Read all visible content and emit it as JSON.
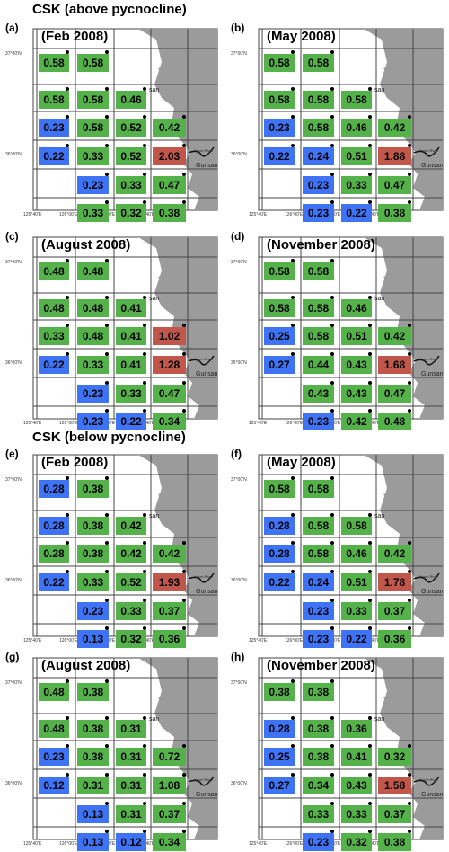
{
  "titles": {
    "above": "CSK (above pycnocline)",
    "below": "CSK (below pycnocline)"
  },
  "colors": {
    "green": "#55b24a",
    "blue": "#3f73f5",
    "red": "#c0574a",
    "land": "#9b9b9b",
    "grid": "#444444"
  },
  "labels": {
    "lat_north": "37°00'N",
    "lat_south": "36°00'N",
    "lon": [
      "125°40'E",
      "126°00'E",
      "126°20'E",
      "126°40'E"
    ],
    "river": "Keum River",
    "city": "Gunsan",
    "upper_place": "san"
  },
  "panels": [
    {
      "letter": "(a)",
      "title": "(Feb 2008)",
      "cells": [
        {
          "row": 0,
          "col": 0,
          "value": "0.58",
          "color": "green"
        },
        {
          "row": 0,
          "col": 1,
          "value": "0.58",
          "color": "green"
        },
        {
          "row": 1,
          "col": 0,
          "value": "0.58",
          "color": "green"
        },
        {
          "row": 1,
          "col": 1,
          "value": "0.58",
          "color": "green"
        },
        {
          "row": 1,
          "col": 2,
          "value": "0.46",
          "color": "green"
        },
        {
          "row": 2,
          "col": 0,
          "value": "0.23",
          "color": "blue"
        },
        {
          "row": 2,
          "col": 1,
          "value": "0.58",
          "color": "green"
        },
        {
          "row": 2,
          "col": 2,
          "value": "0.52",
          "color": "green"
        },
        {
          "row": 2,
          "col": 3,
          "value": "0.42",
          "color": "green"
        },
        {
          "row": 3,
          "col": 0,
          "value": "0.22",
          "color": "blue"
        },
        {
          "row": 3,
          "col": 1,
          "value": "0.33",
          "color": "green"
        },
        {
          "row": 3,
          "col": 2,
          "value": "0.52",
          "color": "green"
        },
        {
          "row": 3,
          "col": 3,
          "value": "2.03",
          "color": "red"
        },
        {
          "row": 4,
          "col": 1,
          "value": "0.23",
          "color": "blue"
        },
        {
          "row": 4,
          "col": 2,
          "value": "0.33",
          "color": "green"
        },
        {
          "row": 4,
          "col": 3,
          "value": "0.47",
          "color": "green"
        },
        {
          "row": 5,
          "col": 1,
          "value": "0.33",
          "color": "green"
        },
        {
          "row": 5,
          "col": 2,
          "value": "0.32",
          "color": "green"
        },
        {
          "row": 5,
          "col": 3,
          "value": "0.38",
          "color": "green"
        }
      ]
    },
    {
      "letter": "(b)",
      "title": "(May 2008)",
      "cells": [
        {
          "row": 0,
          "col": 0,
          "value": "0.58",
          "color": "green"
        },
        {
          "row": 0,
          "col": 1,
          "value": "0.58",
          "color": "green"
        },
        {
          "row": 1,
          "col": 0,
          "value": "0.58",
          "color": "green"
        },
        {
          "row": 1,
          "col": 1,
          "value": "0.58",
          "color": "green"
        },
        {
          "row": 1,
          "col": 2,
          "value": "0.58",
          "color": "green"
        },
        {
          "row": 2,
          "col": 0,
          "value": "0.23",
          "color": "blue"
        },
        {
          "row": 2,
          "col": 1,
          "value": "0.58",
          "color": "green"
        },
        {
          "row": 2,
          "col": 2,
          "value": "0.46",
          "color": "green"
        },
        {
          "row": 2,
          "col": 3,
          "value": "0.42",
          "color": "green"
        },
        {
          "row": 3,
          "col": 0,
          "value": "0.22",
          "color": "blue"
        },
        {
          "row": 3,
          "col": 1,
          "value": "0.24",
          "color": "blue"
        },
        {
          "row": 3,
          "col": 2,
          "value": "0.51",
          "color": "green"
        },
        {
          "row": 3,
          "col": 3,
          "value": "1.88",
          "color": "red"
        },
        {
          "row": 4,
          "col": 1,
          "value": "0.23",
          "color": "blue"
        },
        {
          "row": 4,
          "col": 2,
          "value": "0.33",
          "color": "green"
        },
        {
          "row": 4,
          "col": 3,
          "value": "0.47",
          "color": "green"
        },
        {
          "row": 5,
          "col": 1,
          "value": "0.23",
          "color": "blue"
        },
        {
          "row": 5,
          "col": 2,
          "value": "0.22",
          "color": "blue"
        },
        {
          "row": 5,
          "col": 3,
          "value": "0.38",
          "color": "green"
        }
      ]
    },
    {
      "letter": "(c)",
      "title": "(August 2008)",
      "cells": [
        {
          "row": 0,
          "col": 0,
          "value": "0.48",
          "color": "green"
        },
        {
          "row": 0,
          "col": 1,
          "value": "0.48",
          "color": "green"
        },
        {
          "row": 1,
          "col": 0,
          "value": "0.48",
          "color": "green"
        },
        {
          "row": 1,
          "col": 1,
          "value": "0.48",
          "color": "green"
        },
        {
          "row": 1,
          "col": 2,
          "value": "0.41",
          "color": "green"
        },
        {
          "row": 2,
          "col": 0,
          "value": "0.33",
          "color": "green"
        },
        {
          "row": 2,
          "col": 1,
          "value": "0.48",
          "color": "green"
        },
        {
          "row": 2,
          "col": 2,
          "value": "0.41",
          "color": "green"
        },
        {
          "row": 2,
          "col": 3,
          "value": "1.02",
          "color": "red"
        },
        {
          "row": 3,
          "col": 0,
          "value": "0.22",
          "color": "blue"
        },
        {
          "row": 3,
          "col": 1,
          "value": "0.33",
          "color": "green"
        },
        {
          "row": 3,
          "col": 2,
          "value": "0.41",
          "color": "green"
        },
        {
          "row": 3,
          "col": 3,
          "value": "1.28",
          "color": "red"
        },
        {
          "row": 4,
          "col": 1,
          "value": "0.23",
          "color": "blue"
        },
        {
          "row": 4,
          "col": 2,
          "value": "0.33",
          "color": "green"
        },
        {
          "row": 4,
          "col": 3,
          "value": "0.47",
          "color": "green"
        },
        {
          "row": 5,
          "col": 1,
          "value": "0.23",
          "color": "blue"
        },
        {
          "row": 5,
          "col": 2,
          "value": "0.22",
          "color": "blue"
        },
        {
          "row": 5,
          "col": 3,
          "value": "0.34",
          "color": "green"
        }
      ]
    },
    {
      "letter": "(d)",
      "title": "(November 2008)",
      "cells": [
        {
          "row": 0,
          "col": 0,
          "value": "0.58",
          "color": "green"
        },
        {
          "row": 0,
          "col": 1,
          "value": "0.58",
          "color": "green"
        },
        {
          "row": 1,
          "col": 0,
          "value": "0.58",
          "color": "green"
        },
        {
          "row": 1,
          "col": 1,
          "value": "0.58",
          "color": "green"
        },
        {
          "row": 1,
          "col": 2,
          "value": "0.46",
          "color": "green"
        },
        {
          "row": 2,
          "col": 0,
          "value": "0.25",
          "color": "blue"
        },
        {
          "row": 2,
          "col": 1,
          "value": "0.58",
          "color": "green"
        },
        {
          "row": 2,
          "col": 2,
          "value": "0.51",
          "color": "green"
        },
        {
          "row": 2,
          "col": 3,
          "value": "0.42",
          "color": "green"
        },
        {
          "row": 3,
          "col": 0,
          "value": "0.27",
          "color": "blue"
        },
        {
          "row": 3,
          "col": 1,
          "value": "0.44",
          "color": "green"
        },
        {
          "row": 3,
          "col": 2,
          "value": "0.43",
          "color": "green"
        },
        {
          "row": 3,
          "col": 3,
          "value": "1.68",
          "color": "red"
        },
        {
          "row": 4,
          "col": 1,
          "value": "0.43",
          "color": "green"
        },
        {
          "row": 4,
          "col": 2,
          "value": "0.43",
          "color": "green"
        },
        {
          "row": 4,
          "col": 3,
          "value": "0.47",
          "color": "green"
        },
        {
          "row": 5,
          "col": 1,
          "value": "0.23",
          "color": "blue"
        },
        {
          "row": 5,
          "col": 2,
          "value": "0.42",
          "color": "green"
        },
        {
          "row": 5,
          "col": 3,
          "value": "0.48",
          "color": "green"
        }
      ]
    },
    {
      "letter": "(e)",
      "title": "(Feb 2008)",
      "cells": [
        {
          "row": 0,
          "col": 0,
          "value": "0.28",
          "color": "blue"
        },
        {
          "row": 0,
          "col": 1,
          "value": "0.38",
          "color": "green"
        },
        {
          "row": 1,
          "col": 0,
          "value": "0.28",
          "color": "blue"
        },
        {
          "row": 1,
          "col": 1,
          "value": "0.38",
          "color": "green"
        },
        {
          "row": 1,
          "col": 2,
          "value": "0.42",
          "color": "green"
        },
        {
          "row": 2,
          "col": 0,
          "value": "0.28",
          "color": "green"
        },
        {
          "row": 2,
          "col": 1,
          "value": "0.38",
          "color": "green"
        },
        {
          "row": 2,
          "col": 2,
          "value": "0.42",
          "color": "green"
        },
        {
          "row": 2,
          "col": 3,
          "value": "0.42",
          "color": "green"
        },
        {
          "row": 3,
          "col": 0,
          "value": "0.22",
          "color": "blue"
        },
        {
          "row": 3,
          "col": 1,
          "value": "0.33",
          "color": "green"
        },
        {
          "row": 3,
          "col": 2,
          "value": "0.52",
          "color": "green"
        },
        {
          "row": 3,
          "col": 3,
          "value": "1.93",
          "color": "red"
        },
        {
          "row": 4,
          "col": 1,
          "value": "0.23",
          "color": "blue"
        },
        {
          "row": 4,
          "col": 2,
          "value": "0.33",
          "color": "green"
        },
        {
          "row": 4,
          "col": 3,
          "value": "0.37",
          "color": "green"
        },
        {
          "row": 5,
          "col": 1,
          "value": "0.13",
          "color": "blue"
        },
        {
          "row": 5,
          "col": 2,
          "value": "0.32",
          "color": "green"
        },
        {
          "row": 5,
          "col": 3,
          "value": "0.36",
          "color": "green"
        }
      ]
    },
    {
      "letter": "(f)",
      "title": "(May 2008)",
      "cells": [
        {
          "row": 0,
          "col": 0,
          "value": "0.58",
          "color": "green"
        },
        {
          "row": 0,
          "col": 1,
          "value": "0.58",
          "color": "green"
        },
        {
          "row": 1,
          "col": 0,
          "value": "0.28",
          "color": "blue"
        },
        {
          "row": 1,
          "col": 1,
          "value": "0.58",
          "color": "green"
        },
        {
          "row": 1,
          "col": 2,
          "value": "0.58",
          "color": "green"
        },
        {
          "row": 2,
          "col": 0,
          "value": "0.28",
          "color": "blue"
        },
        {
          "row": 2,
          "col": 1,
          "value": "0.58",
          "color": "green"
        },
        {
          "row": 2,
          "col": 2,
          "value": "0.46",
          "color": "green"
        },
        {
          "row": 2,
          "col": 3,
          "value": "0.42",
          "color": "green"
        },
        {
          "row": 3,
          "col": 0,
          "value": "0.22",
          "color": "blue"
        },
        {
          "row": 3,
          "col": 1,
          "value": "0.24",
          "color": "blue"
        },
        {
          "row": 3,
          "col": 2,
          "value": "0.51",
          "color": "green"
        },
        {
          "row": 3,
          "col": 3,
          "value": "1.78",
          "color": "red"
        },
        {
          "row": 4,
          "col": 1,
          "value": "0.23",
          "color": "blue"
        },
        {
          "row": 4,
          "col": 2,
          "value": "0.33",
          "color": "green"
        },
        {
          "row": 4,
          "col": 3,
          "value": "0.37",
          "color": "green"
        },
        {
          "row": 5,
          "col": 1,
          "value": "0.23",
          "color": "blue"
        },
        {
          "row": 5,
          "col": 2,
          "value": "0.22",
          "color": "blue"
        },
        {
          "row": 5,
          "col": 3,
          "value": "0.36",
          "color": "green"
        }
      ]
    },
    {
      "letter": "(g)",
      "title": "(August 2008)",
      "cells": [
        {
          "row": 0,
          "col": 0,
          "value": "0.48",
          "color": "green"
        },
        {
          "row": 0,
          "col": 1,
          "value": "0.38",
          "color": "green"
        },
        {
          "row": 1,
          "col": 0,
          "value": "0.48",
          "color": "green"
        },
        {
          "row": 1,
          "col": 1,
          "value": "0.38",
          "color": "green"
        },
        {
          "row": 1,
          "col": 2,
          "value": "0.31",
          "color": "green"
        },
        {
          "row": 2,
          "col": 0,
          "value": "0.23",
          "color": "blue"
        },
        {
          "row": 2,
          "col": 1,
          "value": "0.38",
          "color": "green"
        },
        {
          "row": 2,
          "col": 2,
          "value": "0.31",
          "color": "green"
        },
        {
          "row": 2,
          "col": 3,
          "value": "0.72",
          "color": "green"
        },
        {
          "row": 3,
          "col": 0,
          "value": "0.12",
          "color": "blue"
        },
        {
          "row": 3,
          "col": 1,
          "value": "0.31",
          "color": "green"
        },
        {
          "row": 3,
          "col": 2,
          "value": "0.31",
          "color": "green"
        },
        {
          "row": 3,
          "col": 3,
          "value": "1.08",
          "color": "green"
        },
        {
          "row": 4,
          "col": 1,
          "value": "0.13",
          "color": "blue"
        },
        {
          "row": 4,
          "col": 2,
          "value": "0.31",
          "color": "green"
        },
        {
          "row": 4,
          "col": 3,
          "value": "0.37",
          "color": "green"
        },
        {
          "row": 5,
          "col": 1,
          "value": "0.13",
          "color": "blue"
        },
        {
          "row": 5,
          "col": 2,
          "value": "0.12",
          "color": "blue"
        },
        {
          "row": 5,
          "col": 3,
          "value": "0.34",
          "color": "green"
        }
      ]
    },
    {
      "letter": "(h)",
      "title": "(November 2008)",
      "cells": [
        {
          "row": 0,
          "col": 0,
          "value": "0.38",
          "color": "green"
        },
        {
          "row": 0,
          "col": 1,
          "value": "0.38",
          "color": "green"
        },
        {
          "row": 1,
          "col": 0,
          "value": "0.28",
          "color": "blue"
        },
        {
          "row": 1,
          "col": 1,
          "value": "0.38",
          "color": "green"
        },
        {
          "row": 1,
          "col": 2,
          "value": "0.36",
          "color": "green"
        },
        {
          "row": 2,
          "col": 0,
          "value": "0.25",
          "color": "blue"
        },
        {
          "row": 2,
          "col": 1,
          "value": "0.38",
          "color": "green"
        },
        {
          "row": 2,
          "col": 2,
          "value": "0.41",
          "color": "green"
        },
        {
          "row": 2,
          "col": 3,
          "value": "0.32",
          "color": "green"
        },
        {
          "row": 3,
          "col": 0,
          "value": "0.27",
          "color": "blue"
        },
        {
          "row": 3,
          "col": 1,
          "value": "0.34",
          "color": "green"
        },
        {
          "row": 3,
          "col": 2,
          "value": "0.43",
          "color": "green"
        },
        {
          "row": 3,
          "col": 3,
          "value": "1.58",
          "color": "red"
        },
        {
          "row": 4,
          "col": 1,
          "value": "0.33",
          "color": "green"
        },
        {
          "row": 4,
          "col": 2,
          "value": "0.33",
          "color": "green"
        },
        {
          "row": 4,
          "col": 3,
          "value": "0.37",
          "color": "green"
        },
        {
          "row": 5,
          "col": 1,
          "value": "0.23",
          "color": "blue"
        },
        {
          "row": 5,
          "col": 2,
          "value": "0.32",
          "color": "green"
        },
        {
          "row": 5,
          "col": 3,
          "value": "0.38",
          "color": "green"
        }
      ]
    }
  ]
}
